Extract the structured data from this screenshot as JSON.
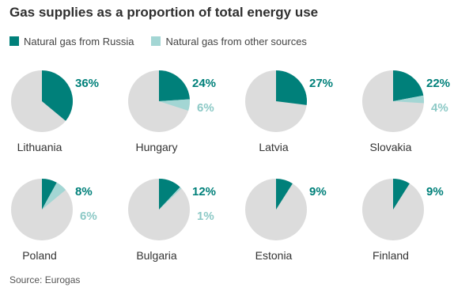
{
  "title": "Gas supplies as a proportion of total energy use",
  "legend": [
    {
      "label": "Natural gas from Russia",
      "color": "#00807a"
    },
    {
      "label": "Natural gas from other sources",
      "color": "#a3d6d4"
    }
  ],
  "colors": {
    "rest": "#dcdcdc",
    "russia": "#00807a",
    "other": "#a3d6d4"
  },
  "chart_data": {
    "type": "pie",
    "series_names": [
      "Natural gas from Russia",
      "Natural gas from other sources"
    ],
    "pies": [
      {
        "country": "Lithuania",
        "russia": 36,
        "other": null,
        "russia_label": "36%",
        "other_label": ""
      },
      {
        "country": "Hungary",
        "russia": 24,
        "other": 6,
        "russia_label": "24%",
        "other_label": "6%"
      },
      {
        "country": "Latvia",
        "russia": 27,
        "other": null,
        "russia_label": "27%",
        "other_label": ""
      },
      {
        "country": "Slovakia",
        "russia": 22,
        "other": 4,
        "russia_label": "22%",
        "other_label": "4%"
      },
      {
        "country": "Poland",
        "russia": 8,
        "other": 6,
        "russia_label": "8%",
        "other_label": "6%"
      },
      {
        "country": "Bulgaria",
        "russia": 12,
        "other": 1,
        "russia_label": "12%",
        "other_label": "1%"
      },
      {
        "country": "Estonia",
        "russia": 9,
        "other": null,
        "russia_label": "9%",
        "other_label": ""
      },
      {
        "country": "Finland",
        "russia": 9,
        "other": null,
        "russia_label": "9%",
        "other_label": ""
      }
    ]
  },
  "source": "Source: Eurogas"
}
